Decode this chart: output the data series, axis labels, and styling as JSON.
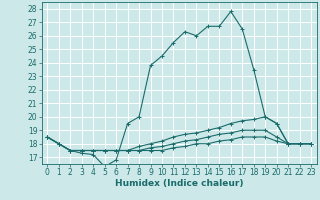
{
  "title": "",
  "xlabel": "Humidex (Indice chaleur)",
  "ylabel": "",
  "background_color": "#cde8e8",
  "grid_color": "#ffffff",
  "line_color": "#1a6b6b",
  "xlim": [
    -0.5,
    23.5
  ],
  "ylim": [
    16.5,
    28.5
  ],
  "xticks": [
    0,
    1,
    2,
    3,
    4,
    5,
    6,
    7,
    8,
    9,
    10,
    11,
    12,
    13,
    14,
    15,
    16,
    17,
    18,
    19,
    20,
    21,
    22,
    23
  ],
  "yticks": [
    17,
    18,
    19,
    20,
    21,
    22,
    23,
    24,
    25,
    26,
    27,
    28
  ],
  "series": [
    [
      18.5,
      18.0,
      17.5,
      17.3,
      17.2,
      16.3,
      16.8,
      19.5,
      20.0,
      23.8,
      24.5,
      25.5,
      26.3,
      26.0,
      26.7,
      26.7,
      27.8,
      26.5,
      23.5,
      20.0,
      19.5,
      18.0,
      18.0,
      18.0
    ],
    [
      18.5,
      18.0,
      17.5,
      17.5,
      17.5,
      17.5,
      17.5,
      17.5,
      17.8,
      18.0,
      18.2,
      18.5,
      18.7,
      18.8,
      19.0,
      19.2,
      19.5,
      19.7,
      19.8,
      20.0,
      19.5,
      18.0,
      18.0,
      18.0
    ],
    [
      18.5,
      18.0,
      17.5,
      17.5,
      17.5,
      17.5,
      17.5,
      17.5,
      17.5,
      17.7,
      17.8,
      18.0,
      18.2,
      18.3,
      18.5,
      18.7,
      18.8,
      19.0,
      19.0,
      19.0,
      18.5,
      18.0,
      18.0,
      18.0
    ],
    [
      18.5,
      18.0,
      17.5,
      17.5,
      17.5,
      17.5,
      17.5,
      17.5,
      17.5,
      17.5,
      17.5,
      17.7,
      17.8,
      18.0,
      18.0,
      18.2,
      18.3,
      18.5,
      18.5,
      18.5,
      18.2,
      18.0,
      18.0,
      18.0
    ]
  ],
  "tick_fontsize": 5.5,
  "xlabel_fontsize": 6.5
}
